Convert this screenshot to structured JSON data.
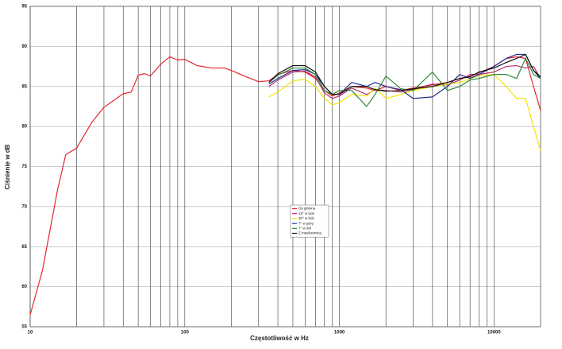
{
  "chart_data": {
    "type": "line",
    "x_label": "Częstotliwość w Hz",
    "y_label": "Ciśnienie w dB",
    "log_x": true,
    "grid": true,
    "legend": "center",
    "xlim": [
      10,
      20000
    ],
    "ylim": [
      55,
      95
    ],
    "xticks": [
      10,
      100,
      1000,
      10000
    ],
    "x_minor_ticks": [
      20,
      30,
      40,
      50,
      60,
      70,
      80,
      90,
      200,
      300,
      400,
      500,
      600,
      700,
      800,
      900,
      2000,
      3000,
      4000,
      5000,
      6000,
      7000,
      8000,
      9000
    ],
    "yticks": [
      55,
      60,
      65,
      70,
      75,
      80,
      85,
      90,
      95
    ],
    "x": [
      10,
      12,
      15,
      17,
      20,
      25,
      30,
      35,
      40,
      45,
      50,
      55,
      60,
      70,
      80,
      90,
      100,
      120,
      150,
      180,
      200,
      250,
      300,
      350,
      400,
      500,
      600,
      700,
      800,
      900,
      1000,
      1200,
      1500,
      1700,
      2000,
      2500,
      3000,
      4000,
      5000,
      6000,
      7000,
      8000,
      10000,
      12000,
      14000,
      16000,
      18000,
      20000
    ],
    "series": [
      {
        "name": "Oś główna",
        "color": "#e8252a",
        "values": [
          56.5,
          62,
          72,
          76.5,
          77.3,
          80.5,
          82.4,
          83.3,
          84.1,
          84.3,
          86.4,
          86.6,
          86.3,
          87.8,
          88.7,
          88.3,
          88.4,
          87.6,
          87.3,
          87.3,
          87,
          86.2,
          85.6,
          85.7,
          86.5,
          87,
          86.8,
          86,
          84.5,
          83.8,
          84.2,
          85,
          84.8,
          84.5,
          85,
          84.5,
          84.8,
          85.2,
          85.5,
          86,
          86.3,
          86.7,
          87.5,
          88.5,
          88.7,
          88.5,
          85,
          82
        ]
      },
      {
        "name": "15° w bok",
        "color": "#b8306e",
        "values": [
          null,
          null,
          null,
          null,
          null,
          null,
          null,
          null,
          null,
          null,
          null,
          null,
          null,
          null,
          null,
          null,
          null,
          null,
          null,
          null,
          null,
          null,
          null,
          85,
          85.8,
          86.8,
          86.9,
          86.2,
          84.2,
          83.5,
          83.8,
          84.8,
          84,
          84.6,
          84.5,
          84.3,
          84.6,
          85.3,
          85.2,
          85.8,
          86.5,
          86.5,
          86.8,
          87.5,
          87.6,
          87.3,
          87.5,
          86
        ]
      },
      {
        "name": "30° w bok",
        "color": "#f2e400",
        "values": [
          null,
          null,
          null,
          null,
          null,
          null,
          null,
          null,
          null,
          null,
          null,
          null,
          null,
          null,
          null,
          null,
          null,
          null,
          null,
          null,
          null,
          null,
          null,
          83.7,
          84.3,
          85.7,
          85.9,
          85,
          83.5,
          82.7,
          83,
          84,
          83.8,
          84.8,
          83.5,
          84,
          84.5,
          85,
          85.3,
          85.5,
          86,
          86.3,
          86.5,
          85,
          83.5,
          83.5,
          80,
          77
        ]
      },
      {
        "name": "7° w górę",
        "color": "#1f2f8f",
        "values": [
          null,
          null,
          null,
          null,
          null,
          null,
          null,
          null,
          null,
          null,
          null,
          null,
          null,
          null,
          null,
          null,
          null,
          null,
          null,
          null,
          null,
          null,
          null,
          85.3,
          86,
          87,
          87.1,
          86.5,
          85,
          84,
          84,
          85.5,
          85,
          85.5,
          85,
          84.6,
          83.5,
          83.7,
          85,
          86.5,
          86,
          86.5,
          87.5,
          88.5,
          89,
          89,
          87,
          86
        ]
      },
      {
        "name": "7° w dół",
        "color": "#2e8b3a",
        "values": [
          null,
          null,
          null,
          null,
          null,
          null,
          null,
          null,
          null,
          null,
          null,
          null,
          null,
          null,
          null,
          null,
          null,
          null,
          null,
          null,
          null,
          null,
          null,
          85.5,
          86.4,
          87.3,
          87.3,
          86.5,
          84.5,
          84,
          84.5,
          84.5,
          82.5,
          84,
          86.3,
          84.7,
          84.5,
          86.8,
          84.5,
          85,
          85.8,
          86,
          86.5,
          86.5,
          86,
          88.5,
          86.5,
          86
        ]
      },
      {
        "name": "Z maskownicą",
        "color": "#111111",
        "values": [
          null,
          null,
          null,
          null,
          null,
          null,
          null,
          null,
          null,
          null,
          null,
          null,
          null,
          null,
          null,
          null,
          null,
          null,
          null,
          null,
          null,
          null,
          null,
          85.5,
          86.6,
          87.6,
          87.6,
          86.8,
          85,
          84,
          84,
          85,
          85,
          84.6,
          84.4,
          84.5,
          84.7,
          85,
          85.5,
          86,
          86.2,
          86.8,
          87.3,
          88,
          88.5,
          89,
          87,
          86.2
        ]
      }
    ]
  }
}
